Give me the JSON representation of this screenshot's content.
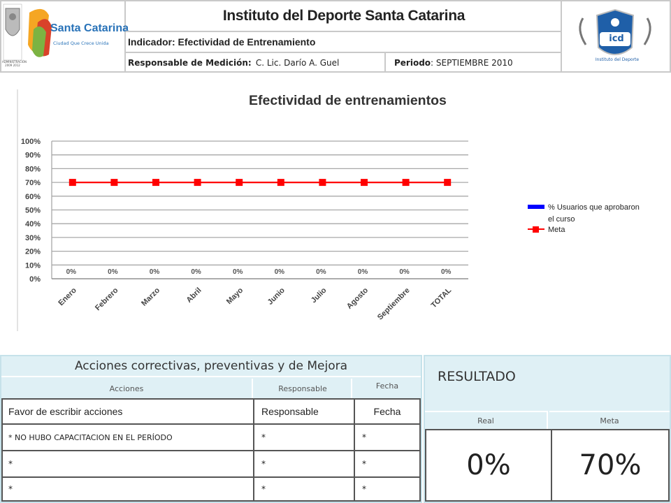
{
  "header": {
    "title": "Instituto del Deporte Santa Catarina",
    "indicator": "Indicador: Efectividad de Entrenamiento",
    "responsible_label": "Responsable de Medición",
    "responsible_value": "C. Lic. Darío A. Guel",
    "period_label": "Periodo",
    "period_value": "SEPTIEMBRE 2010",
    "logo_left_text": "Santa Catarina",
    "logo_left_tagline": "Ciudad Que Crece Unida",
    "logo_left_admin": "ADMINISTRACIÓN 2009 2012",
    "logo_right_text": "icd",
    "logo_right_caption": "Instituto del Deporte"
  },
  "chart_data": {
    "type": "line",
    "title": "Efectividad de entrenamientos",
    "categories": [
      "Enero",
      "Febrero",
      "Marzo",
      "Abril",
      "Mayo",
      "Junio",
      "Julio",
      "Agosto",
      "Septiembre",
      "TOTAL"
    ],
    "series": [
      {
        "name": "% Usuarios que aprobaron el curso",
        "type": "bar",
        "color": "#0000ff",
        "values": [
          0,
          0,
          0,
          0,
          0,
          0,
          0,
          0,
          0,
          0
        ],
        "data_labels": [
          "0%",
          "0%",
          "0%",
          "0%",
          "0%",
          "0%",
          "0%",
          "0%",
          "0%",
          "0%"
        ]
      },
      {
        "name": "Meta",
        "type": "line",
        "color": "#ff0000",
        "values": [
          70,
          70,
          70,
          70,
          70,
          70,
          70,
          70,
          70,
          70
        ]
      }
    ],
    "y_ticks": [
      "0%",
      "10%",
      "20%",
      "30%",
      "40%",
      "50%",
      "60%",
      "70%",
      "80%",
      "90%",
      "100%"
    ],
    "ylim": [
      0,
      100
    ],
    "grid": true,
    "legend_position": "right"
  },
  "actions": {
    "title": "Acciones correctivas, preventivas y de Mejora",
    "col_acciones": "Acciones",
    "col_responsable": "Responsable",
    "col_fecha": "Fecha",
    "input_row": {
      "accion": "Favor de escribir acciones",
      "responsable": "Responsable",
      "fecha": "Fecha"
    },
    "rows": [
      {
        "accion": "* NO HUBO CAPACITACION EN EL PERÍODO",
        "responsable": "*",
        "fecha": "*"
      },
      {
        "accion": "*",
        "responsable": "*",
        "fecha": "*"
      },
      {
        "accion": "*",
        "responsable": "*",
        "fecha": "*"
      }
    ]
  },
  "result": {
    "title": "RESULTADO",
    "col_real": "Real",
    "col_meta": "Meta",
    "real_value": "0%",
    "meta_value": "70%"
  }
}
